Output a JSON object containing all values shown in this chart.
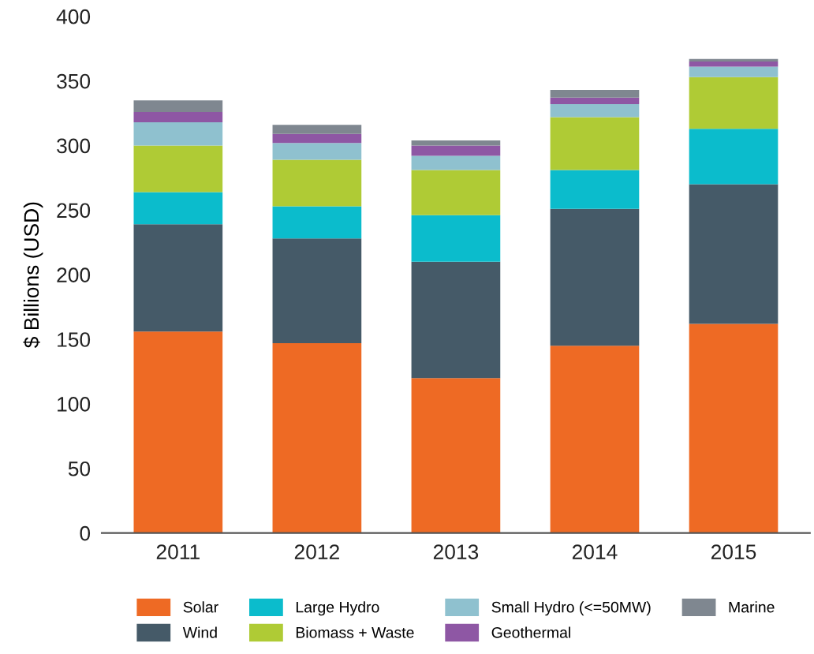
{
  "chart_data": {
    "type": "bar",
    "stacked": true,
    "ylabel": "$ Billions (USD)",
    "categories": [
      "2011",
      "2012",
      "2013",
      "2014",
      "2015"
    ],
    "series": [
      {
        "name": "Solar",
        "color": "#ee6a24",
        "values": [
          156,
          147,
          120,
          145,
          162
        ]
      },
      {
        "name": "Wind",
        "color": "#455a68",
        "values": [
          83,
          81,
          90,
          106,
          108
        ]
      },
      {
        "name": "Large Hydro",
        "color": "#0bbccc",
        "values": [
          25,
          25,
          36,
          30,
          43
        ]
      },
      {
        "name": "Biomass + Waste",
        "color": "#afcb35",
        "values": [
          36,
          36,
          35,
          41,
          40
        ]
      },
      {
        "name": "Small Hydro (<=50MW)",
        "color": "#8fc1cf",
        "values": [
          18,
          13,
          11,
          10,
          8
        ]
      },
      {
        "name": "Geothermal",
        "color": "#8e57a4",
        "values": [
          8,
          7,
          8,
          5,
          4
        ]
      },
      {
        "name": "Marine",
        "color": "#7f8790",
        "values": [
          9,
          7,
          4,
          6,
          2
        ]
      }
    ],
    "ylim": [
      0,
      400
    ],
    "yticks": [
      0,
      50,
      100,
      150,
      200,
      250,
      300,
      350,
      400
    ],
    "grid": false,
    "legend": "bottom"
  }
}
